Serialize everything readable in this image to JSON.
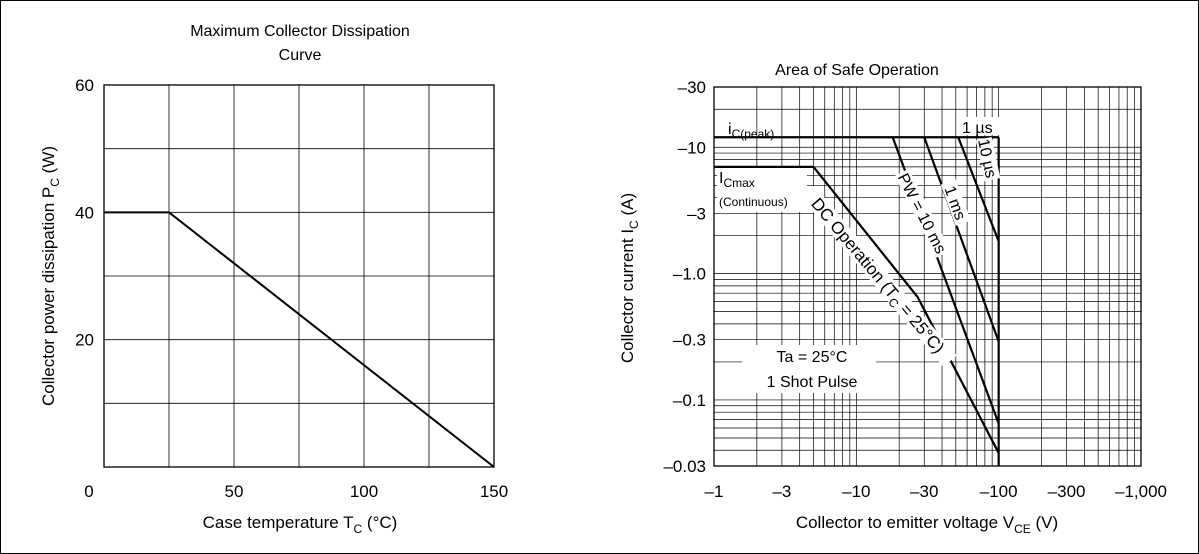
{
  "chart_data": [
    {
      "type": "line",
      "title_line1": "Maximum Collector Dissipation",
      "title_line2": "Curve",
      "ylabel_text": "Collector power dissipation  P",
      "ylabel_sub": "C",
      "ylabel_unit": "  (W)",
      "xlabel_text": "Case temperature  T",
      "xlabel_sub": "C",
      "xlabel_unit": "  (°C)",
      "xlim": [
        0,
        150
      ],
      "ylim": [
        0,
        60
      ],
      "x_ticks": [
        0,
        50,
        100,
        150
      ],
      "y_ticks": [
        20,
        40,
        60
      ],
      "grid": true,
      "series": [
        {
          "x": [
            0,
            25,
            150
          ],
          "y": [
            40,
            40,
            0
          ]
        }
      ]
    },
    {
      "type": "line",
      "title": "Area of Safe Operation",
      "ylabel_text": "Collector current  I",
      "ylabel_sub": "C",
      "ylabel_unit": "  (A)",
      "xlabel_text": "Collector to emitter voltage  V",
      "xlabel_sub": "CE",
      "xlabel_unit": "  (V)",
      "x_scale": "log",
      "y_scale": "log",
      "xlim": [
        -1,
        -1000
      ],
      "ylim": [
        -0.03,
        -30
      ],
      "x_tick_labels": [
        "–1",
        "–3",
        "–10",
        "–30",
        "–100",
        "–300",
        "–1,000"
      ],
      "x_tick_values": [
        1,
        3,
        10,
        30,
        100,
        300,
        1000
      ],
      "y_tick_labels": [
        "–30",
        "–10",
        "–3",
        "–1.0",
        "–0.3",
        "–0.1",
        "–0.03"
      ],
      "y_tick_values": [
        30,
        10,
        3,
        1,
        0.3,
        0.1,
        0.03
      ],
      "grid": true,
      "series": [
        {
          "name": "iC(peak)",
          "x": [
            1,
            100
          ],
          "y": [
            12,
            12
          ]
        },
        {
          "name": "ICmax (Continuous)",
          "x": [
            1,
            5
          ],
          "y": [
            7,
            7
          ]
        },
        {
          "name": "DC Operation (TC = 25°C)",
          "x": [
            5,
            27,
            100
          ],
          "y": [
            7,
            0.65,
            0.038
          ]
        },
        {
          "name": "PW = 10 ms",
          "x": [
            18,
            100
          ],
          "y": [
            12,
            0.065
          ]
        },
        {
          "name": "1 ms",
          "x": [
            30,
            100
          ],
          "y": [
            12,
            0.29
          ]
        },
        {
          "name": "10 µs",
          "x": [
            52,
            100
          ],
          "y": [
            12,
            1.8
          ]
        },
        {
          "name": "1 µs",
          "x": [
            100,
            100
          ],
          "y": [
            12,
            0.03
          ]
        }
      ],
      "labels": {
        "ic_peak_main": "i",
        "ic_peak_sub": "C(peak)",
        "one_us": "1 µs",
        "ten_us": "10 µs",
        "one_ms": "1 ms",
        "pw": "PW = 10 ms",
        "dc": "DC Operation (T",
        "dc_sub": "C",
        "dc_end": " = 25°C)",
        "icmax_main": "I",
        "icmax_sub": "Cmax",
        "continuous": "(Continuous)",
        "ta": "Ta = 25°C",
        "shot": "1 Shot Pulse"
      }
    }
  ]
}
